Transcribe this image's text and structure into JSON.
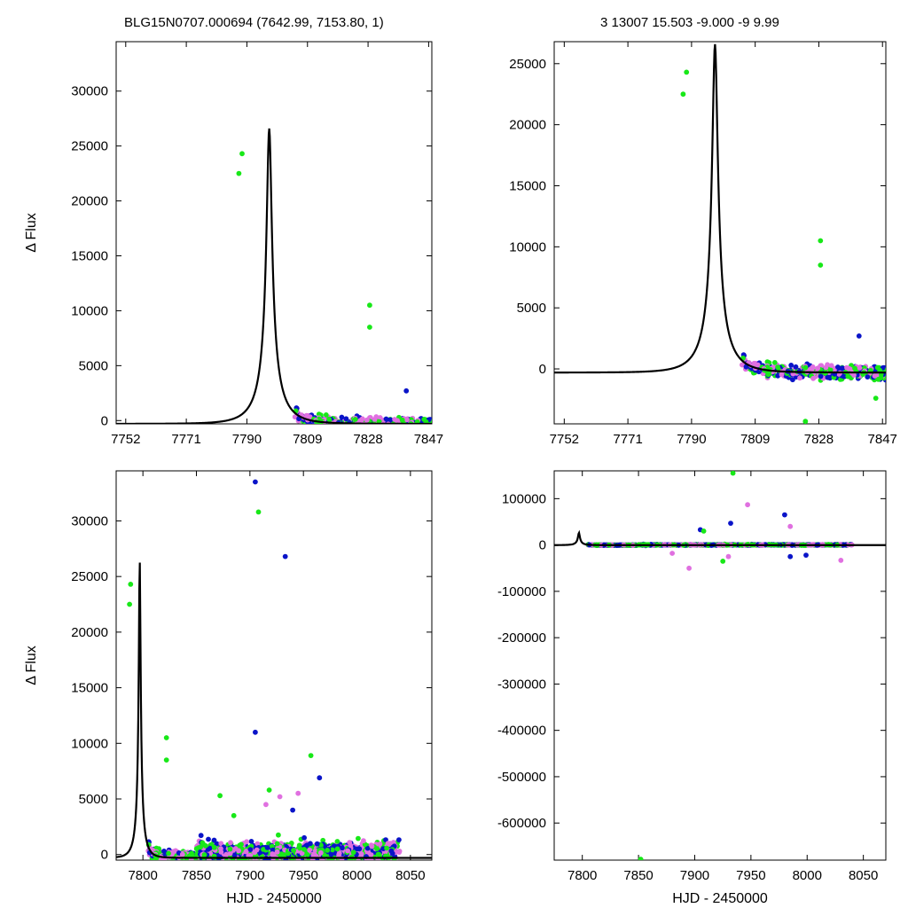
{
  "header": {
    "left": "BLG15N0707.000694 (7642.99, 7153.80,    1)",
    "right": "3   13007   15.503   -9.000   -9   9.99"
  },
  "colors": {
    "magenta": "#e070e0",
    "blue": "#0a14c8",
    "green": "#18e818",
    "model": "#000000"
  },
  "chart_data": [
    {
      "type": "scatter",
      "panel": "top-left",
      "xlabel": "",
      "ylabel": "Δ Flux",
      "xlim": [
        7749,
        7848
      ],
      "ylim": [
        -300,
        34500
      ],
      "xticks": [
        7752,
        7771,
        7790,
        7809,
        7828,
        7847
      ],
      "yticks": [
        0,
        5000,
        10000,
        15000,
        20000,
        25000,
        30000
      ],
      "model": {
        "t0": 7797.0,
        "tE": 8.0,
        "u0": 0.1,
        "peak": 26600,
        "baseline": -300
      },
      "outliers": [
        {
          "x": 7787.5,
          "y": 22500,
          "c": "green"
        },
        {
          "x": 7788.5,
          "y": 24300,
          "c": "green"
        },
        {
          "x": 7828.5,
          "y": 10500,
          "c": "green"
        },
        {
          "x": 7828.5,
          "y": 8500,
          "c": "green"
        },
        {
          "x": 7840,
          "y": 2700,
          "c": "blue"
        }
      ]
    },
    {
      "type": "scatter",
      "panel": "top-right",
      "xlabel": "",
      "ylabel": "",
      "xlim": [
        7749,
        7848
      ],
      "ylim": [
        -4500,
        26800
      ],
      "xticks": [
        7752,
        7771,
        7790,
        7809,
        7828,
        7847
      ],
      "yticks": [
        0,
        5000,
        10000,
        15000,
        20000,
        25000
      ],
      "model": {
        "t0": 7797.0,
        "tE": 8.0,
        "u0": 0.1,
        "peak": 26600,
        "baseline": -300
      },
      "outliers": [
        {
          "x": 7787.5,
          "y": 22500,
          "c": "green"
        },
        {
          "x": 7788.5,
          "y": 24300,
          "c": "green"
        },
        {
          "x": 7828.5,
          "y": 10500,
          "c": "green"
        },
        {
          "x": 7828.5,
          "y": 8500,
          "c": "green"
        },
        {
          "x": 7824,
          "y": -4300,
          "c": "green"
        },
        {
          "x": 7845,
          "y": -2400,
          "c": "green"
        },
        {
          "x": 7840,
          "y": 2700,
          "c": "blue"
        }
      ]
    },
    {
      "type": "scatter",
      "panel": "bottom-left",
      "xlabel": "HJD - 2450000",
      "ylabel": "Δ Flux",
      "xlim": [
        7775,
        8070
      ],
      "ylim": [
        -500,
        34500
      ],
      "xticks": [
        7800,
        7850,
        7900,
        7950,
        8000,
        8050
      ],
      "yticks": [
        0,
        5000,
        10000,
        15000,
        20000,
        25000,
        30000
      ],
      "model": {
        "t0": 7797.0,
        "tE": 8.0,
        "u0": 0.1,
        "peak": 26600,
        "baseline": -300
      },
      "outliers": [
        {
          "x": 7787.5,
          "y": 22500,
          "c": "green"
        },
        {
          "x": 7788.5,
          "y": 24300,
          "c": "green"
        },
        {
          "x": 7905,
          "y": 33500,
          "c": "blue"
        },
        {
          "x": 7908,
          "y": 30800,
          "c": "green"
        },
        {
          "x": 7933,
          "y": 26800,
          "c": "blue"
        },
        {
          "x": 7905,
          "y": 11000,
          "c": "blue"
        },
        {
          "x": 7822,
          "y": 10500,
          "c": "green"
        },
        {
          "x": 7822,
          "y": 8500,
          "c": "green"
        },
        {
          "x": 7957,
          "y": 8900,
          "c": "green"
        },
        {
          "x": 7965,
          "y": 6900,
          "c": "blue"
        },
        {
          "x": 7872,
          "y": 5300,
          "c": "green"
        },
        {
          "x": 7885,
          "y": 3500,
          "c": "green"
        },
        {
          "x": 7915,
          "y": 4500,
          "c": "magenta"
        },
        {
          "x": 7928,
          "y": 5200,
          "c": "magenta"
        },
        {
          "x": 7945,
          "y": 5500,
          "c": "magenta"
        },
        {
          "x": 7918,
          "y": 5800,
          "c": "green"
        },
        {
          "x": 7940,
          "y": 4000,
          "c": "blue"
        }
      ]
    },
    {
      "type": "scatter",
      "panel": "bottom-right",
      "xlabel": "HJD - 2450000",
      "ylabel": "",
      "xlim": [
        7775,
        8070
      ],
      "ylim": [
        -680000,
        160000
      ],
      "xticks": [
        7800,
        7850,
        7900,
        7950,
        8000,
        8050
      ],
      "yticks": [
        -600000,
        -500000,
        -400000,
        -300000,
        -200000,
        -100000,
        0,
        100000
      ],
      "model": {
        "t0": 7797.0,
        "tE": 8.0,
        "u0": 0.1,
        "peak": 26600,
        "baseline": -300
      },
      "outliers": [
        {
          "x": 7852,
          "y": -678000,
          "c": "green"
        },
        {
          "x": 7934,
          "y": 155000,
          "c": "green"
        },
        {
          "x": 7947,
          "y": 87000,
          "c": "magenta"
        },
        {
          "x": 7980,
          "y": 65000,
          "c": "blue"
        },
        {
          "x": 7932,
          "y": 47000,
          "c": "blue"
        },
        {
          "x": 7905,
          "y": 33000,
          "c": "blue"
        },
        {
          "x": 7908,
          "y": 30000,
          "c": "green"
        },
        {
          "x": 7985,
          "y": 40000,
          "c": "magenta"
        },
        {
          "x": 7895,
          "y": -50000,
          "c": "magenta"
        },
        {
          "x": 7925,
          "y": -35000,
          "c": "green"
        },
        {
          "x": 7930,
          "y": -25000,
          "c": "magenta"
        },
        {
          "x": 7985,
          "y": -25000,
          "c": "blue"
        },
        {
          "x": 7999,
          "y": -22000,
          "c": "blue"
        },
        {
          "x": 8030,
          "y": -33000,
          "c": "magenta"
        },
        {
          "x": 7880,
          "y": -18000,
          "c": "magenta"
        }
      ]
    }
  ]
}
